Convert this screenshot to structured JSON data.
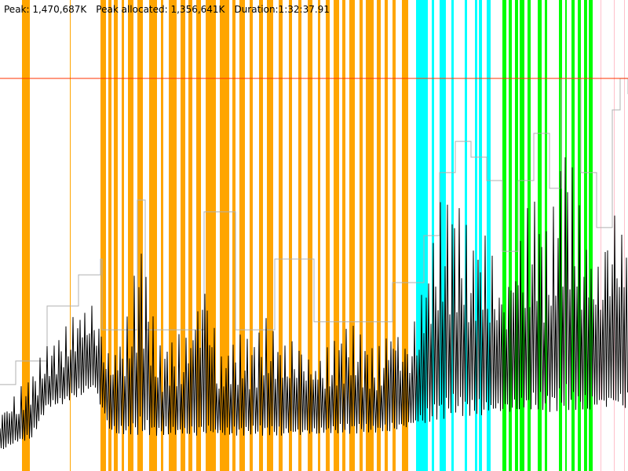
{
  "header": {
    "peak": "Peak: 1,470,687K",
    "peak_allocated": "Peak allocated: 1,356,641K",
    "duration": "Duration:1:32:37.91"
  },
  "chart_data": {
    "type": "line",
    "title": "",
    "xlabel": "",
    "ylabel": "",
    "x_unit": "seconds",
    "y_unit": "K",
    "xlim": [
      0,
      5600
    ],
    "ylim": [
      0,
      1764600
    ],
    "grid": false,
    "peak_line_K": 1470687,
    "colors": {
      "used": "#000000",
      "committed": "#b0b0b0",
      "peak_line": "#ff3300",
      "band_orange": "#ffa500",
      "band_cyan": "#00ffff",
      "band_green": "#00ff00",
      "band_pink": "#ffc0cb"
    },
    "bands": {
      "orange": [
        [
          196,
          266
        ],
        [
          623,
          630
        ],
        [
          896,
          945
        ],
        [
          966,
          994
        ],
        [
          1015,
          1050
        ],
        [
          1085,
          1106
        ],
        [
          1141,
          1190
        ],
        [
          1225,
          1274
        ],
        [
          1330,
          1400
        ],
        [
          1435,
          1456
        ],
        [
          1505,
          1575
        ],
        [
          1610,
          1652
        ],
        [
          1680,
          1715
        ],
        [
          1750,
          1792
        ],
        [
          1834,
          1925
        ],
        [
          1960,
          2044
        ],
        [
          2072,
          2100
        ],
        [
          2135,
          2184
        ],
        [
          2226,
          2254
        ],
        [
          2310,
          2345
        ],
        [
          2380,
          2436
        ],
        [
          2485,
          2520
        ],
        [
          2576,
          2604
        ],
        [
          2660,
          2688
        ],
        [
          2744,
          2786
        ],
        [
          2835,
          2856
        ],
        [
          2905,
          2940
        ],
        [
          2975,
          3024
        ],
        [
          3052,
          3080
        ],
        [
          3115,
          3164
        ],
        [
          3206,
          3234
        ],
        [
          3262,
          3332
        ],
        [
          3360,
          3395
        ],
        [
          3430,
          3458
        ],
        [
          3500,
          3528
        ],
        [
          3584,
          3640
        ]
      ],
      "cyan": [
        [
          3710,
          3815
        ],
        [
          3850,
          3871
        ],
        [
          3920,
          3976
        ],
        [
          4025,
          4046
        ],
        [
          4144,
          4165
        ],
        [
          4235,
          4256
        ],
        [
          4270,
          4298
        ],
        [
          4340,
          4375
        ]
      ],
      "green": [
        [
          4480,
          4515
        ],
        [
          4536,
          4564
        ],
        [
          4592,
          4620
        ],
        [
          4634,
          4676
        ],
        [
          4704,
          4732
        ],
        [
          4795,
          4830
        ],
        [
          4858,
          4879
        ],
        [
          4984,
          5012
        ],
        [
          5040,
          5054
        ],
        [
          5096,
          5124
        ],
        [
          5152,
          5180
        ],
        [
          5208,
          5236
        ],
        [
          5250,
          5285
        ]
      ],
      "pink": [
        [
          5355,
          5362
        ],
        [
          5474,
          5481
        ],
        [
          5565,
          5572
        ]
      ]
    },
    "used_envelope": {
      "t": [
        0,
        140,
        280,
        420,
        560,
        700,
        840,
        980,
        1120,
        1260,
        1400,
        1540,
        1680,
        1820,
        1960,
        2100,
        2240,
        2380,
        2520,
        2660,
        2800,
        2940,
        3080,
        3220,
        3360,
        3500,
        3640,
        3780,
        3920,
        4060,
        4200,
        4340,
        4480,
        4620,
        4760,
        4900,
        5040,
        5180,
        5320,
        5460,
        5600
      ],
      "max": [
        265000,
        324000,
        382000,
        471000,
        529000,
        647000,
        706000,
        500000,
        588000,
        912000,
        471000,
        529000,
        588000,
        912000,
        471000,
        529000,
        500000,
        588000,
        529000,
        588000,
        471000,
        500000,
        559000,
        529000,
        471000,
        647000,
        559000,
        794000,
        1029000,
        1059000,
        882000,
        1000000,
        794000,
        1000000,
        1118000,
        882000,
        1323000,
        1029000,
        882000,
        1176000,
        971000
      ],
      "min": [
        74000,
        103000,
        118000,
        235000,
        250000,
        279000,
        309000,
        147000,
        132000,
        132000,
        132000,
        132000,
        132000,
        132000,
        132000,
        132000,
        132000,
        132000,
        132000,
        132000,
        138000,
        138000,
        138000,
        141000,
        141000,
        147000,
        162000,
        176000,
        191000,
        206000,
        206000,
        206000,
        221000,
        221000,
        221000,
        221000,
        221000,
        221000,
        235000,
        235000,
        235000
      ]
    },
    "committed": {
      "t": [
        0,
        140,
        420,
        700,
        896,
        910,
        1225,
        1295,
        1820,
        2100,
        2450,
        2800,
        3500,
        3780,
        3920,
        4060,
        4200,
        4340,
        4480,
        4620,
        4760,
        4900,
        5005,
        5180,
        5320,
        5460,
        5530,
        5600
      ],
      "K": [
        324000,
        412000,
        618000,
        735000,
        794000,
        529000,
        1015000,
        529000,
        971000,
        529000,
        794000,
        559000,
        706000,
        882000,
        1118000,
        1235000,
        1176000,
        1088000,
        823000,
        1088000,
        1265000,
        1059000,
        1470687,
        1118000,
        912000,
        1353000,
        1470687,
        1412000
      ]
    }
  }
}
